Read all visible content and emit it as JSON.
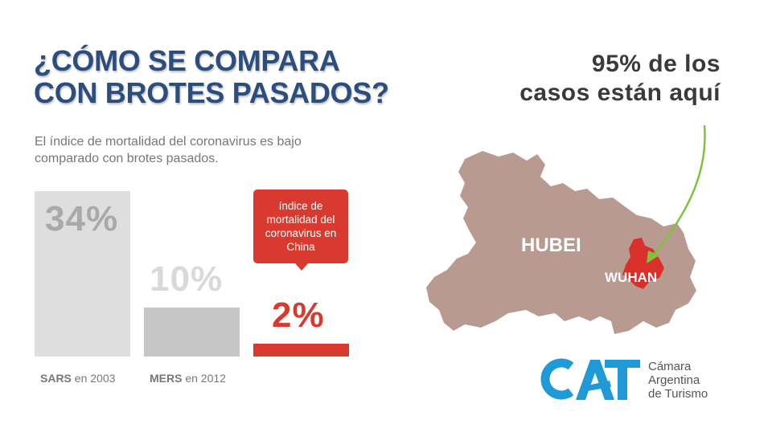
{
  "title": {
    "line1": "¿CÓMO SE COMPARA",
    "line2": "CON BROTES PASADOS?"
  },
  "subtitle": {
    "line1": "El índice de mortalidad del coronavirus es bajo",
    "line2": "comparado con brotes pasados."
  },
  "bars": [
    {
      "value_label": "34%",
      "name": "SARS",
      "year": "en 2003",
      "value": 34,
      "color": "#dedede",
      "value_color": "#a9a9a9"
    },
    {
      "value_label": "10%",
      "name": "MERS",
      "year": "en 2012",
      "value": 10,
      "color": "#c6c6c6",
      "value_color": "#d9d9d9"
    },
    {
      "value_label": "2%",
      "value": 2,
      "color": "#d93a2f",
      "value_color": "#d93a2f"
    }
  ],
  "callout": {
    "line1": "índice de",
    "line2": "mortalidad del",
    "line3": "coronavirus en",
    "line4": "China"
  },
  "headline": {
    "line1": "95% de los",
    "line2": "casos están aquí"
  },
  "map": {
    "region_label": "HUBEI",
    "city_label": "WUHAN",
    "region_color": "#b89a91",
    "city_color": "#d9302a",
    "arrow_color": "#7ec23f"
  },
  "logo": {
    "mark": "CAT",
    "org_line1": "Cámara",
    "org_line2": "Argentina",
    "org_line3": "de Turismo",
    "color": "#1f9ad6"
  }
}
